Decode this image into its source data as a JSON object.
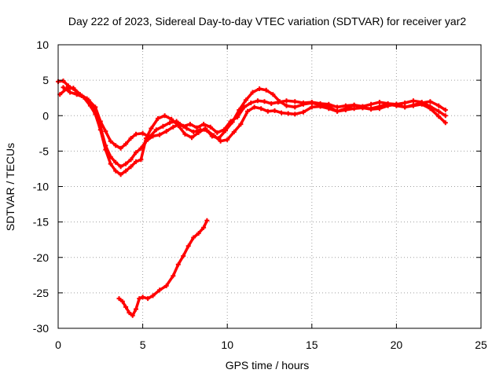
{
  "chart_data": {
    "type": "line",
    "title": "Day 222 of 2023, Sidereal Day-to-day VTEC variation (SDTVAR) for receiver yar2",
    "xlabel": "GPS time / hours",
    "ylabel": "SDTVAR / TECUs",
    "xlim": [
      0,
      25
    ],
    "ylim": [
      -30,
      10
    ],
    "xticks": [
      0,
      5,
      10,
      15,
      20,
      25
    ],
    "yticks": [
      -30,
      -25,
      -20,
      -15,
      -10,
      -5,
      0,
      5,
      10
    ],
    "xtick_labels": [
      "0",
      "5",
      "10",
      "15",
      "20",
      "25"
    ],
    "ytick_labels": [
      "-30",
      "-25",
      "-20",
      "-15",
      "-10",
      "-5",
      "0",
      "5",
      "10"
    ],
    "grid": true,
    "color": "#ff0000",
    "series": [
      {
        "name": "track-a",
        "x": [
          0.0,
          0.3,
          0.6,
          1.0,
          1.4,
          1.8,
          2.2,
          2.5,
          2.8,
          3.1,
          3.4,
          3.7,
          4.0,
          4.3,
          4.6,
          5.0,
          5.4,
          5.8,
          6.2,
          6.6,
          7.0,
          7.4,
          7.8,
          8.2,
          8.6,
          9.0,
          9.4,
          9.8,
          10.2,
          10.6,
          11.0,
          11.4,
          11.8,
          12.2,
          12.6,
          13.0,
          13.5,
          14.0,
          14.5,
          15.0,
          15.5,
          16.0,
          16.5,
          17.0,
          17.5,
          18.0,
          18.5,
          19.0,
          19.5,
          20.0,
          20.5,
          21.0,
          21.5,
          22.0,
          22.5,
          22.9
        ],
        "y": [
          4.8,
          4.9,
          4.2,
          3.6,
          2.8,
          2.2,
          1.2,
          -0.8,
          -2.2,
          -3.6,
          -4.2,
          -4.6,
          -4.0,
          -3.2,
          -2.6,
          -2.5,
          -3.0,
          -2.0,
          -1.5,
          -1.0,
          -0.8,
          -1.5,
          -1.2,
          -1.7,
          -1.2,
          -1.6,
          -2.4,
          -2.0,
          -0.8,
          -0.2,
          1.2,
          1.8,
          2.1,
          2.0,
          1.7,
          1.9,
          2.1,
          2.0,
          1.8,
          1.9,
          1.7,
          1.6,
          1.2,
          1.4,
          1.5,
          1.3,
          1.6,
          1.9,
          1.7,
          1.6,
          1.8,
          2.1,
          1.9,
          1.3,
          0.6,
          0.0
        ]
      },
      {
        "name": "track-b",
        "x": [
          0.1,
          0.5,
          0.9,
          1.3,
          1.7,
          2.1,
          2.5,
          2.8,
          3.1,
          3.4,
          3.7,
          4.0,
          4.3,
          4.6,
          4.9,
          5.2,
          5.6,
          6.0,
          6.4,
          6.8,
          7.2,
          7.6,
          8.0,
          8.4,
          8.8,
          9.2,
          9.6,
          10.0,
          10.4,
          10.8,
          11.2,
          11.6,
          12.0,
          12.4,
          12.8,
          13.2,
          13.6,
          14.0,
          14.5,
          15.0,
          15.5,
          16.0,
          16.5,
          17.0,
          17.5,
          18.0,
          18.5,
          19.0,
          19.5,
          20.0,
          20.5,
          21.0,
          21.5,
          22.0,
          22.5,
          22.9
        ],
        "y": [
          3.0,
          3.8,
          3.9,
          3.0,
          2.4,
          1.0,
          -1.6,
          -4.2,
          -5.8,
          -6.6,
          -7.2,
          -6.8,
          -6.2,
          -5.2,
          -4.6,
          -3.6,
          -2.9,
          -2.7,
          -2.2,
          -1.6,
          -1.2,
          -1.8,
          -2.3,
          -2.0,
          -2.1,
          -2.8,
          -3.6,
          -3.4,
          -2.3,
          -1.2,
          0.6,
          1.2,
          1.0,
          0.6,
          0.7,
          0.4,
          0.3,
          0.2,
          0.5,
          1.2,
          1.3,
          1.0,
          0.6,
          0.8,
          1.0,
          1.1,
          1.0,
          1.3,
          1.6,
          1.4,
          1.2,
          1.5,
          1.8,
          2.0,
          1.4,
          0.8
        ]
      },
      {
        "name": "track-c",
        "x": [
          0.3,
          0.7,
          1.1,
          1.5,
          1.9,
          2.2,
          2.5,
          2.8,
          3.1,
          3.4,
          3.7,
          4.0,
          4.3,
          4.6,
          4.9,
          5.2,
          5.5,
          5.9,
          6.3,
          6.7,
          7.1,
          7.5,
          7.9,
          8.3,
          8.7,
          9.1,
          9.5,
          9.9,
          10.3,
          10.7,
          11.1,
          11.5,
          11.9,
          12.3,
          12.7,
          13.1,
          13.5,
          14.0,
          14.5,
          15.0,
          15.5,
          16.0,
          16.5,
          17.0,
          17.5,
          18.0,
          18.5,
          19.0,
          19.5,
          20.0,
          20.5,
          21.0,
          21.5,
          22.0,
          22.5,
          22.9
        ],
        "y": [
          4.0,
          3.3,
          3.0,
          2.6,
          1.4,
          0.2,
          -2.0,
          -4.8,
          -6.8,
          -7.8,
          -8.3,
          -7.8,
          -7.2,
          -6.5,
          -6.2,
          -3.2,
          -1.8,
          -0.4,
          0.0,
          -0.5,
          -1.4,
          -2.6,
          -3.1,
          -2.4,
          -1.8,
          -2.9,
          -3.2,
          -2.1,
          -0.9,
          0.8,
          2.2,
          3.3,
          3.8,
          3.6,
          3.0,
          2.0,
          1.4,
          1.2,
          1.6,
          1.8,
          1.5,
          1.3,
          0.6,
          1.0,
          1.5,
          1.1,
          0.9,
          1.0,
          1.4,
          1.6,
          1.2,
          1.4,
          1.6,
          1.0,
          -0.1,
          -1.0
        ]
      },
      {
        "name": "track-d",
        "x": [
          3.6,
          3.8,
          4.0,
          4.2,
          4.4,
          4.6,
          4.8,
          5.0,
          5.3,
          5.6,
          6.0,
          6.4,
          6.8,
          7.1,
          7.4,
          7.7,
          8.0,
          8.3,
          8.6,
          8.8
        ],
        "y": [
          -25.8,
          -26.2,
          -27.0,
          -27.8,
          -28.2,
          -27.3,
          -25.8,
          -25.6,
          -25.8,
          -25.4,
          -24.6,
          -24.0,
          -22.6,
          -21.0,
          -19.8,
          -18.4,
          -17.2,
          -16.6,
          -15.8,
          -14.8
        ]
      }
    ]
  }
}
